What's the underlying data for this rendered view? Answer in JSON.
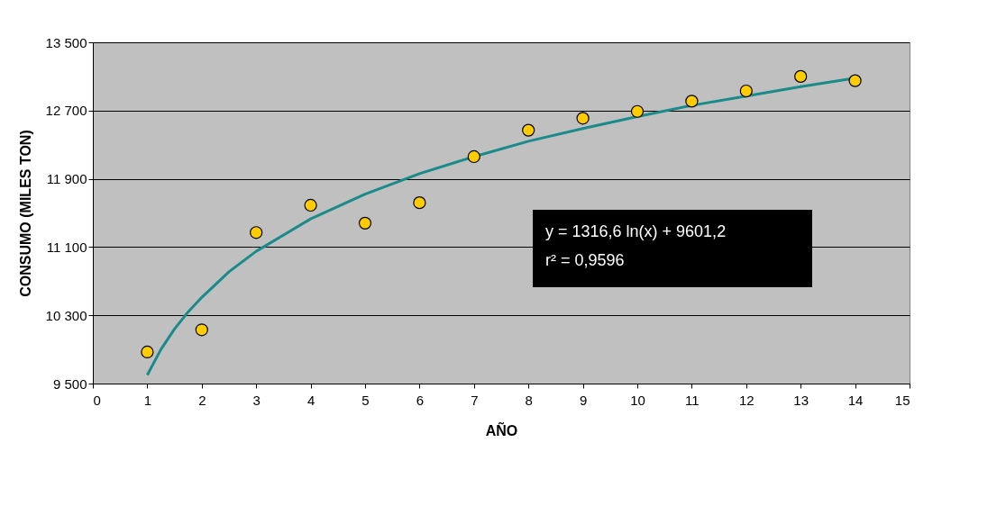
{
  "chart_data": {
    "type": "scatter",
    "xlabel": "AÑO",
    "ylabel": "CONSUMO (MILES TON)",
    "x": [
      1,
      2,
      3,
      4,
      5,
      6,
      7,
      8,
      9,
      10,
      11,
      12,
      13,
      14
    ],
    "series": [
      {
        "color": "#ffcc00",
        "marker": "circle",
        "values": [
          9870,
          10130,
          11270,
          11590,
          11380,
          11620,
          12160,
          12470,
          12610,
          12690,
          12810,
          12930,
          13100,
          13050
        ]
      },
      {
        "type": "line",
        "color": "#1a8a8a",
        "marker": "none",
        "line_style": "solid",
        "x": [
          1,
          1.25,
          1.5,
          1.75,
          2,
          2.5,
          3,
          4,
          5,
          6,
          7,
          8,
          9,
          10,
          11,
          12,
          13,
          14
        ],
        "values": [
          9600,
          9900,
          10140,
          10340,
          10510,
          10810,
          11050,
          11430,
          11720,
          11960,
          12160,
          12340,
          12490,
          12630,
          12760,
          12870,
          12980,
          13080
        ]
      }
    ],
    "xlim": [
      0,
      15
    ],
    "xticks": [
      0,
      1,
      2,
      3,
      4,
      5,
      6,
      7,
      8,
      9,
      10,
      11,
      12,
      13,
      14,
      15
    ],
    "ylim": [
      9500,
      13500
    ],
    "yticks": [
      {
        "value": 9500,
        "label": "9 500"
      },
      {
        "value": 10300,
        "label": "10 300"
      },
      {
        "value": 11100,
        "label": "11 100"
      },
      {
        "value": 11900,
        "label": "11 900"
      },
      {
        "value": 12700,
        "label": "12 700"
      },
      {
        "value": 13500,
        "label": "13 500"
      }
    ],
    "grid": "y",
    "annotations": [
      "y  = 1316,6 ln(x) + 9601,2",
      "r² = 0,9596"
    ]
  }
}
